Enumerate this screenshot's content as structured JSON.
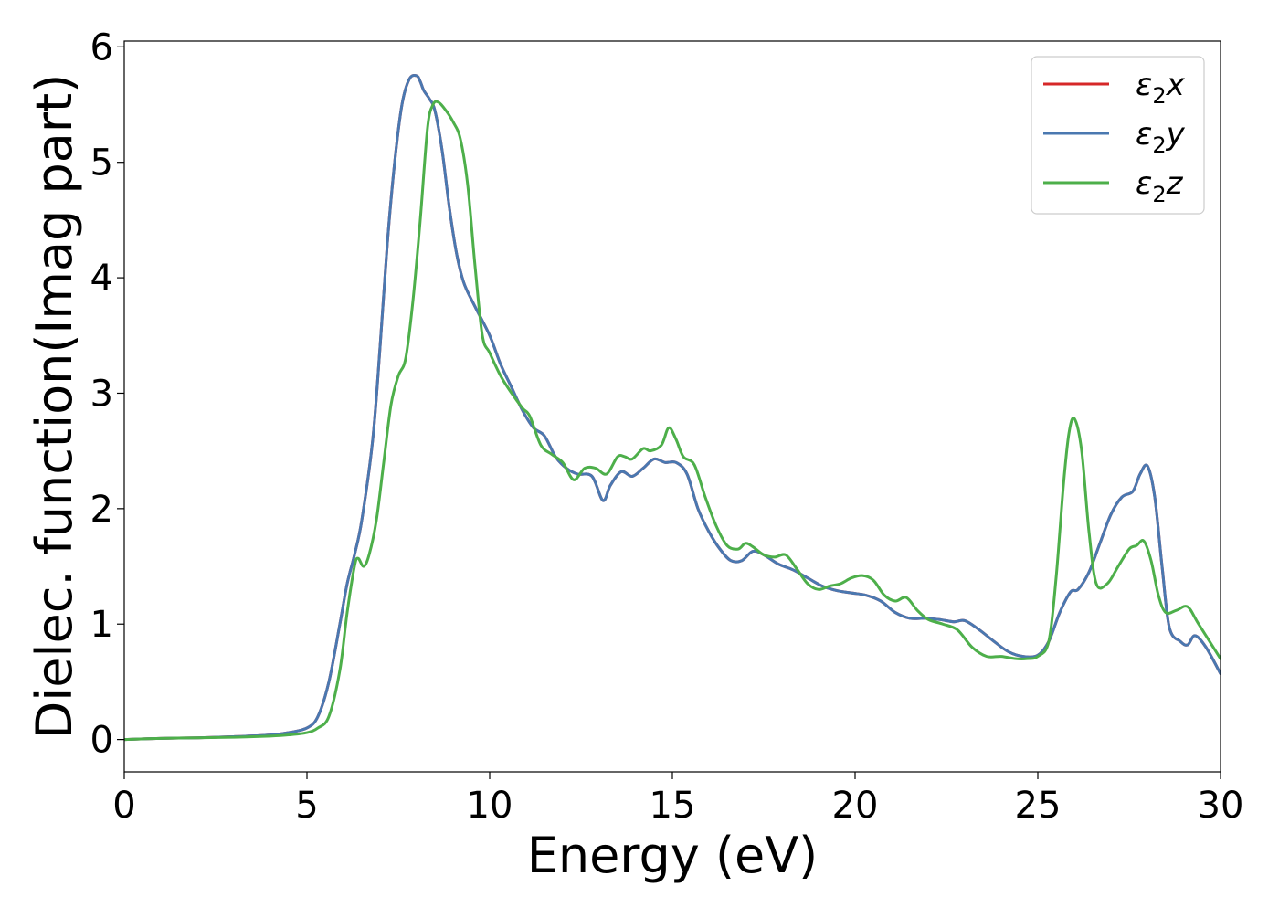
{
  "chart_data": {
    "type": "line",
    "title": "",
    "xlabel": "Energy (eV)",
    "ylabel": "Dielec. function(Imag part)",
    "xlim": [
      0,
      30
    ],
    "ylim": [
      -0.28,
      6.05
    ],
    "x_ticks": [
      0,
      5,
      10,
      15,
      20,
      25,
      30
    ],
    "y_ticks": [
      0,
      1,
      2,
      3,
      4,
      5,
      6
    ],
    "grid": false,
    "legend_position": "top-right",
    "series": [
      {
        "name": "ε₂x",
        "legend_main": "ε",
        "legend_sub": "2",
        "legend_var": "x",
        "color": "#d62728",
        "x": [
          0,
          1,
          2,
          3,
          4,
          4.5,
          5,
          5.3,
          5.6,
          5.9,
          6.1,
          6.3,
          6.5,
          6.8,
          7.0,
          7.2,
          7.4,
          7.6,
          7.8,
          8.0,
          8.1,
          8.2,
          8.35,
          8.5,
          8.7,
          8.9,
          9.1,
          9.3,
          9.6,
          10.0,
          10.3,
          10.6,
          10.9,
          11.2,
          11.5,
          11.8,
          12.1,
          12.4,
          12.8,
          13.1,
          13.3,
          13.6,
          13.9,
          14.2,
          14.5,
          14.8,
          15.1,
          15.4,
          15.7,
          16.0,
          16.3,
          16.6,
          16.9,
          17.2,
          17.5,
          17.9,
          18.3,
          18.7,
          19.1,
          19.5,
          19.9,
          20.3,
          20.7,
          21.1,
          21.5,
          21.9,
          22.3,
          22.7,
          23.0,
          23.4,
          23.8,
          24.2,
          24.6,
          25.0,
          25.3,
          25.6,
          25.9,
          26.1,
          26.4,
          26.7,
          27.0,
          27.3,
          27.6,
          27.8,
          28.0,
          28.2,
          28.4,
          28.6,
          28.9,
          29.1,
          29.3,
          29.6,
          30.0
        ],
        "values": [
          0.0,
          0.01,
          0.015,
          0.025,
          0.04,
          0.06,
          0.1,
          0.2,
          0.5,
          1.0,
          1.35,
          1.6,
          1.9,
          2.6,
          3.4,
          4.3,
          5.0,
          5.5,
          5.72,
          5.75,
          5.7,
          5.62,
          5.55,
          5.45,
          5.1,
          4.6,
          4.2,
          3.95,
          3.75,
          3.5,
          3.25,
          3.05,
          2.85,
          2.7,
          2.63,
          2.45,
          2.35,
          2.3,
          2.28,
          2.07,
          2.2,
          2.32,
          2.28,
          2.35,
          2.43,
          2.4,
          2.4,
          2.3,
          2.0,
          1.8,
          1.65,
          1.55,
          1.55,
          1.63,
          1.6,
          1.52,
          1.47,
          1.4,
          1.33,
          1.29,
          1.27,
          1.25,
          1.2,
          1.1,
          1.05,
          1.05,
          1.04,
          1.02,
          1.03,
          0.95,
          0.85,
          0.76,
          0.72,
          0.73,
          0.85,
          1.1,
          1.28,
          1.3,
          1.45,
          1.7,
          1.95,
          2.1,
          2.15,
          2.3,
          2.37,
          2.1,
          1.5,
          0.97,
          0.85,
          0.82,
          0.9,
          0.8,
          0.57
        ]
      },
      {
        "name": "ε₂y",
        "legend_main": "ε",
        "legend_sub": "2",
        "legend_var": "y",
        "color": "#4a78b0",
        "x": [
          0,
          1,
          2,
          3,
          4,
          4.5,
          5,
          5.3,
          5.6,
          5.9,
          6.1,
          6.3,
          6.5,
          6.8,
          7.0,
          7.2,
          7.4,
          7.6,
          7.8,
          8.0,
          8.1,
          8.2,
          8.35,
          8.5,
          8.7,
          8.9,
          9.1,
          9.3,
          9.6,
          10.0,
          10.3,
          10.6,
          10.9,
          11.2,
          11.5,
          11.8,
          12.1,
          12.4,
          12.8,
          13.1,
          13.3,
          13.6,
          13.9,
          14.2,
          14.5,
          14.8,
          15.1,
          15.4,
          15.7,
          16.0,
          16.3,
          16.6,
          16.9,
          17.2,
          17.5,
          17.9,
          18.3,
          18.7,
          19.1,
          19.5,
          19.9,
          20.3,
          20.7,
          21.1,
          21.5,
          21.9,
          22.3,
          22.7,
          23.0,
          23.4,
          23.8,
          24.2,
          24.6,
          25.0,
          25.3,
          25.6,
          25.9,
          26.1,
          26.4,
          26.7,
          27.0,
          27.3,
          27.6,
          27.8,
          28.0,
          28.2,
          28.4,
          28.6,
          28.9,
          29.1,
          29.3,
          29.6,
          30.0
        ],
        "values": [
          0.0,
          0.01,
          0.015,
          0.025,
          0.04,
          0.06,
          0.1,
          0.2,
          0.5,
          1.0,
          1.35,
          1.6,
          1.9,
          2.6,
          3.4,
          4.3,
          5.0,
          5.5,
          5.72,
          5.75,
          5.7,
          5.62,
          5.55,
          5.45,
          5.1,
          4.6,
          4.2,
          3.95,
          3.75,
          3.5,
          3.25,
          3.05,
          2.85,
          2.7,
          2.63,
          2.45,
          2.35,
          2.3,
          2.28,
          2.07,
          2.2,
          2.32,
          2.28,
          2.35,
          2.43,
          2.4,
          2.4,
          2.3,
          2.0,
          1.8,
          1.65,
          1.55,
          1.55,
          1.63,
          1.6,
          1.52,
          1.47,
          1.4,
          1.33,
          1.29,
          1.27,
          1.25,
          1.2,
          1.1,
          1.05,
          1.05,
          1.04,
          1.02,
          1.03,
          0.95,
          0.85,
          0.76,
          0.72,
          0.73,
          0.85,
          1.1,
          1.28,
          1.3,
          1.45,
          1.7,
          1.95,
          2.1,
          2.15,
          2.3,
          2.37,
          2.1,
          1.5,
          0.97,
          0.85,
          0.82,
          0.9,
          0.8,
          0.57
        ]
      },
      {
        "name": "ε₂z",
        "legend_main": "ε",
        "legend_sub": "2",
        "legend_var": "z",
        "color": "#4daf4a",
        "x": [
          0,
          1,
          2,
          3,
          4,
          4.5,
          5,
          5.3,
          5.6,
          5.9,
          6.1,
          6.3,
          6.4,
          6.55,
          6.7,
          6.9,
          7.1,
          7.3,
          7.5,
          7.7,
          7.9,
          8.1,
          8.3,
          8.45,
          8.6,
          8.8,
          9.0,
          9.2,
          9.4,
          9.6,
          9.8,
          10.0,
          10.3,
          10.6,
          10.9,
          11.1,
          11.4,
          11.7,
          12.0,
          12.3,
          12.6,
          12.9,
          13.2,
          13.5,
          13.7,
          13.9,
          14.2,
          14.4,
          14.7,
          14.9,
          15.1,
          15.3,
          15.6,
          15.9,
          16.2,
          16.5,
          16.8,
          17.0,
          17.2,
          17.5,
          17.8,
          18.1,
          18.4,
          18.7,
          19.0,
          19.3,
          19.6,
          19.9,
          20.2,
          20.5,
          20.8,
          21.1,
          21.4,
          21.7,
          22.0,
          22.4,
          22.8,
          23.2,
          23.6,
          24.0,
          24.4,
          24.7,
          25.0,
          25.3,
          25.5,
          25.7,
          25.85,
          26.0,
          26.2,
          26.4,
          26.6,
          26.9,
          27.2,
          27.5,
          27.7,
          27.9,
          28.1,
          28.3,
          28.5,
          28.8,
          29.1,
          29.4,
          30.0
        ],
        "values": [
          0.0,
          0.01,
          0.015,
          0.02,
          0.03,
          0.04,
          0.06,
          0.1,
          0.2,
          0.6,
          1.1,
          1.5,
          1.57,
          1.5,
          1.6,
          1.9,
          2.4,
          2.9,
          3.15,
          3.3,
          3.8,
          4.5,
          5.3,
          5.5,
          5.52,
          5.45,
          5.35,
          5.2,
          4.8,
          4.1,
          3.5,
          3.35,
          3.15,
          3.0,
          2.87,
          2.8,
          2.55,
          2.47,
          2.4,
          2.25,
          2.35,
          2.35,
          2.3,
          2.45,
          2.45,
          2.43,
          2.52,
          2.5,
          2.55,
          2.7,
          2.6,
          2.45,
          2.38,
          2.1,
          1.85,
          1.68,
          1.65,
          1.7,
          1.67,
          1.6,
          1.58,
          1.6,
          1.48,
          1.35,
          1.3,
          1.33,
          1.35,
          1.4,
          1.42,
          1.38,
          1.25,
          1.2,
          1.23,
          1.12,
          1.04,
          1.0,
          0.95,
          0.8,
          0.72,
          0.72,
          0.7,
          0.7,
          0.72,
          0.85,
          1.4,
          2.2,
          2.65,
          2.78,
          2.5,
          1.8,
          1.35,
          1.35,
          1.5,
          1.65,
          1.68,
          1.72,
          1.55,
          1.25,
          1.1,
          1.12,
          1.15,
          1.0,
          0.7
        ]
      }
    ]
  }
}
